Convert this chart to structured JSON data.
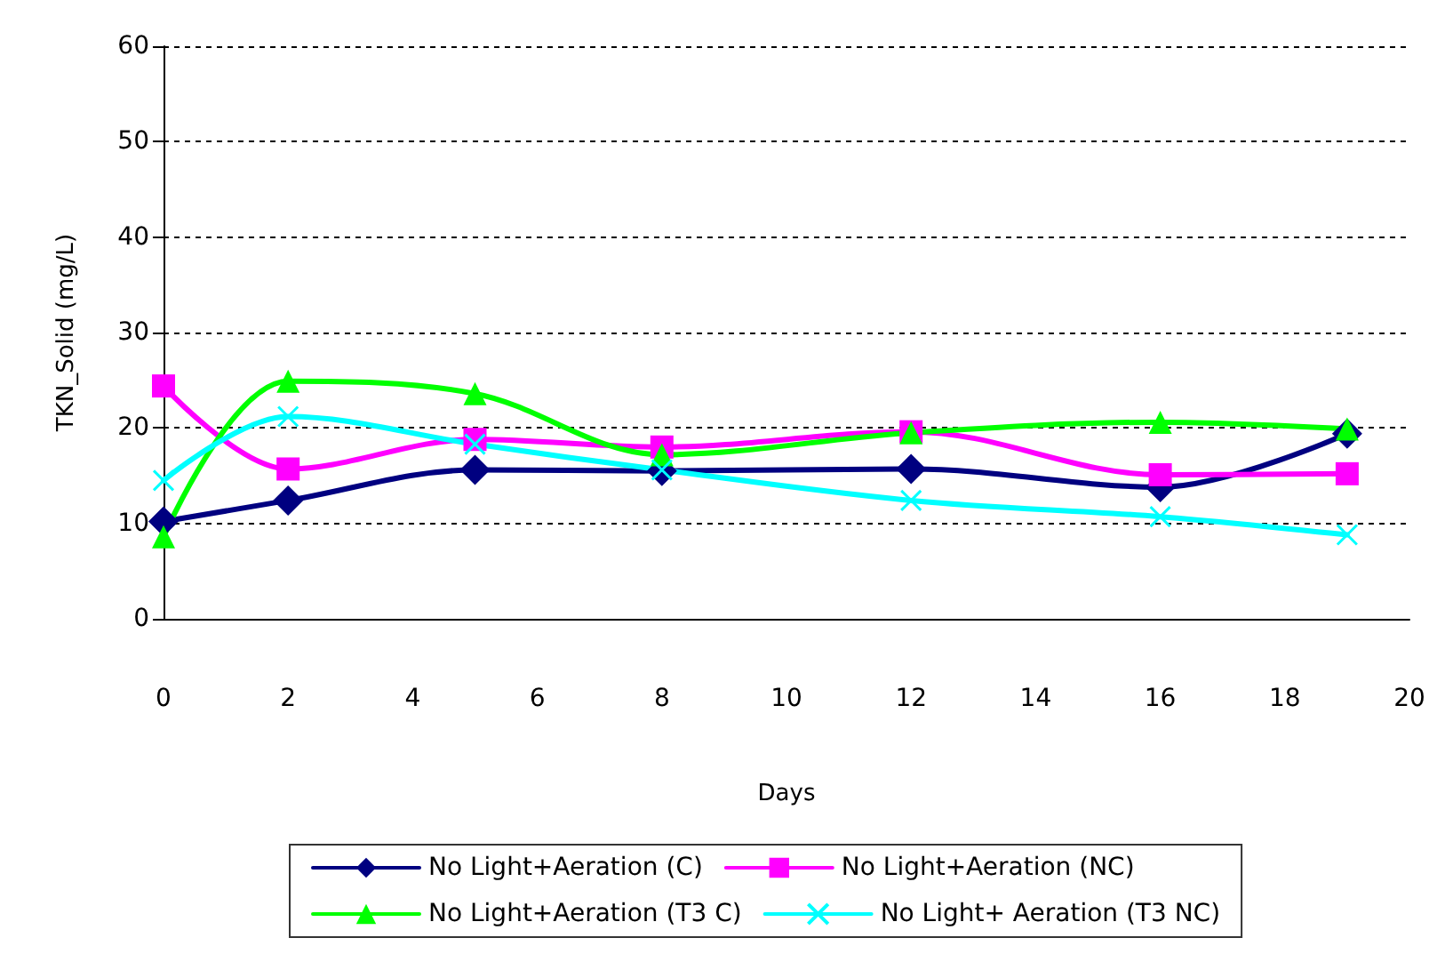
{
  "chart_data": {
    "type": "line",
    "xlabel": "Days",
    "ylabel": "TKN_Solid (mg/L)",
    "xlim": [
      0,
      20
    ],
    "xticks": [
      0,
      2,
      4,
      6,
      8,
      10,
      12,
      14,
      16,
      18,
      20
    ],
    "ylim": [
      0,
      60
    ],
    "yticks": [
      0,
      10,
      20,
      30,
      40,
      50,
      60
    ],
    "grid": "y",
    "legend": "bottom",
    "series": [
      {
        "name": "No Light+Aeration (C)",
        "color": "#000080",
        "marker": "diamond",
        "x": [
          0,
          2,
          5,
          8,
          12,
          16,
          19
        ],
        "values": [
          10.2,
          12.4,
          15.6,
          15.5,
          15.7,
          13.8,
          19.4
        ]
      },
      {
        "name": "No Light+Aeration (NC)",
        "color": "#ff00ff",
        "marker": "square",
        "x": [
          0,
          2,
          5,
          8,
          12,
          16,
          19
        ],
        "values": [
          24.4,
          15.7,
          18.8,
          18.0,
          19.6,
          15.1,
          15.2
        ]
      },
      {
        "name": "No Light+Aeration (T3 C)",
        "color": "#00ff00",
        "marker": "triangle",
        "x": [
          0,
          2,
          5,
          8,
          12,
          16,
          19
        ],
        "values": [
          8.6,
          24.9,
          23.6,
          17.2,
          19.5,
          20.6,
          19.9
        ]
      },
      {
        "name": "No Light+ Aeration (T3 NC)",
        "color": "#00ffff",
        "marker": "cross",
        "x": [
          0,
          2,
          5,
          8,
          12,
          16,
          19
        ],
        "values": [
          14.5,
          21.2,
          18.3,
          15.6,
          12.4,
          10.7,
          8.8
        ]
      }
    ]
  }
}
